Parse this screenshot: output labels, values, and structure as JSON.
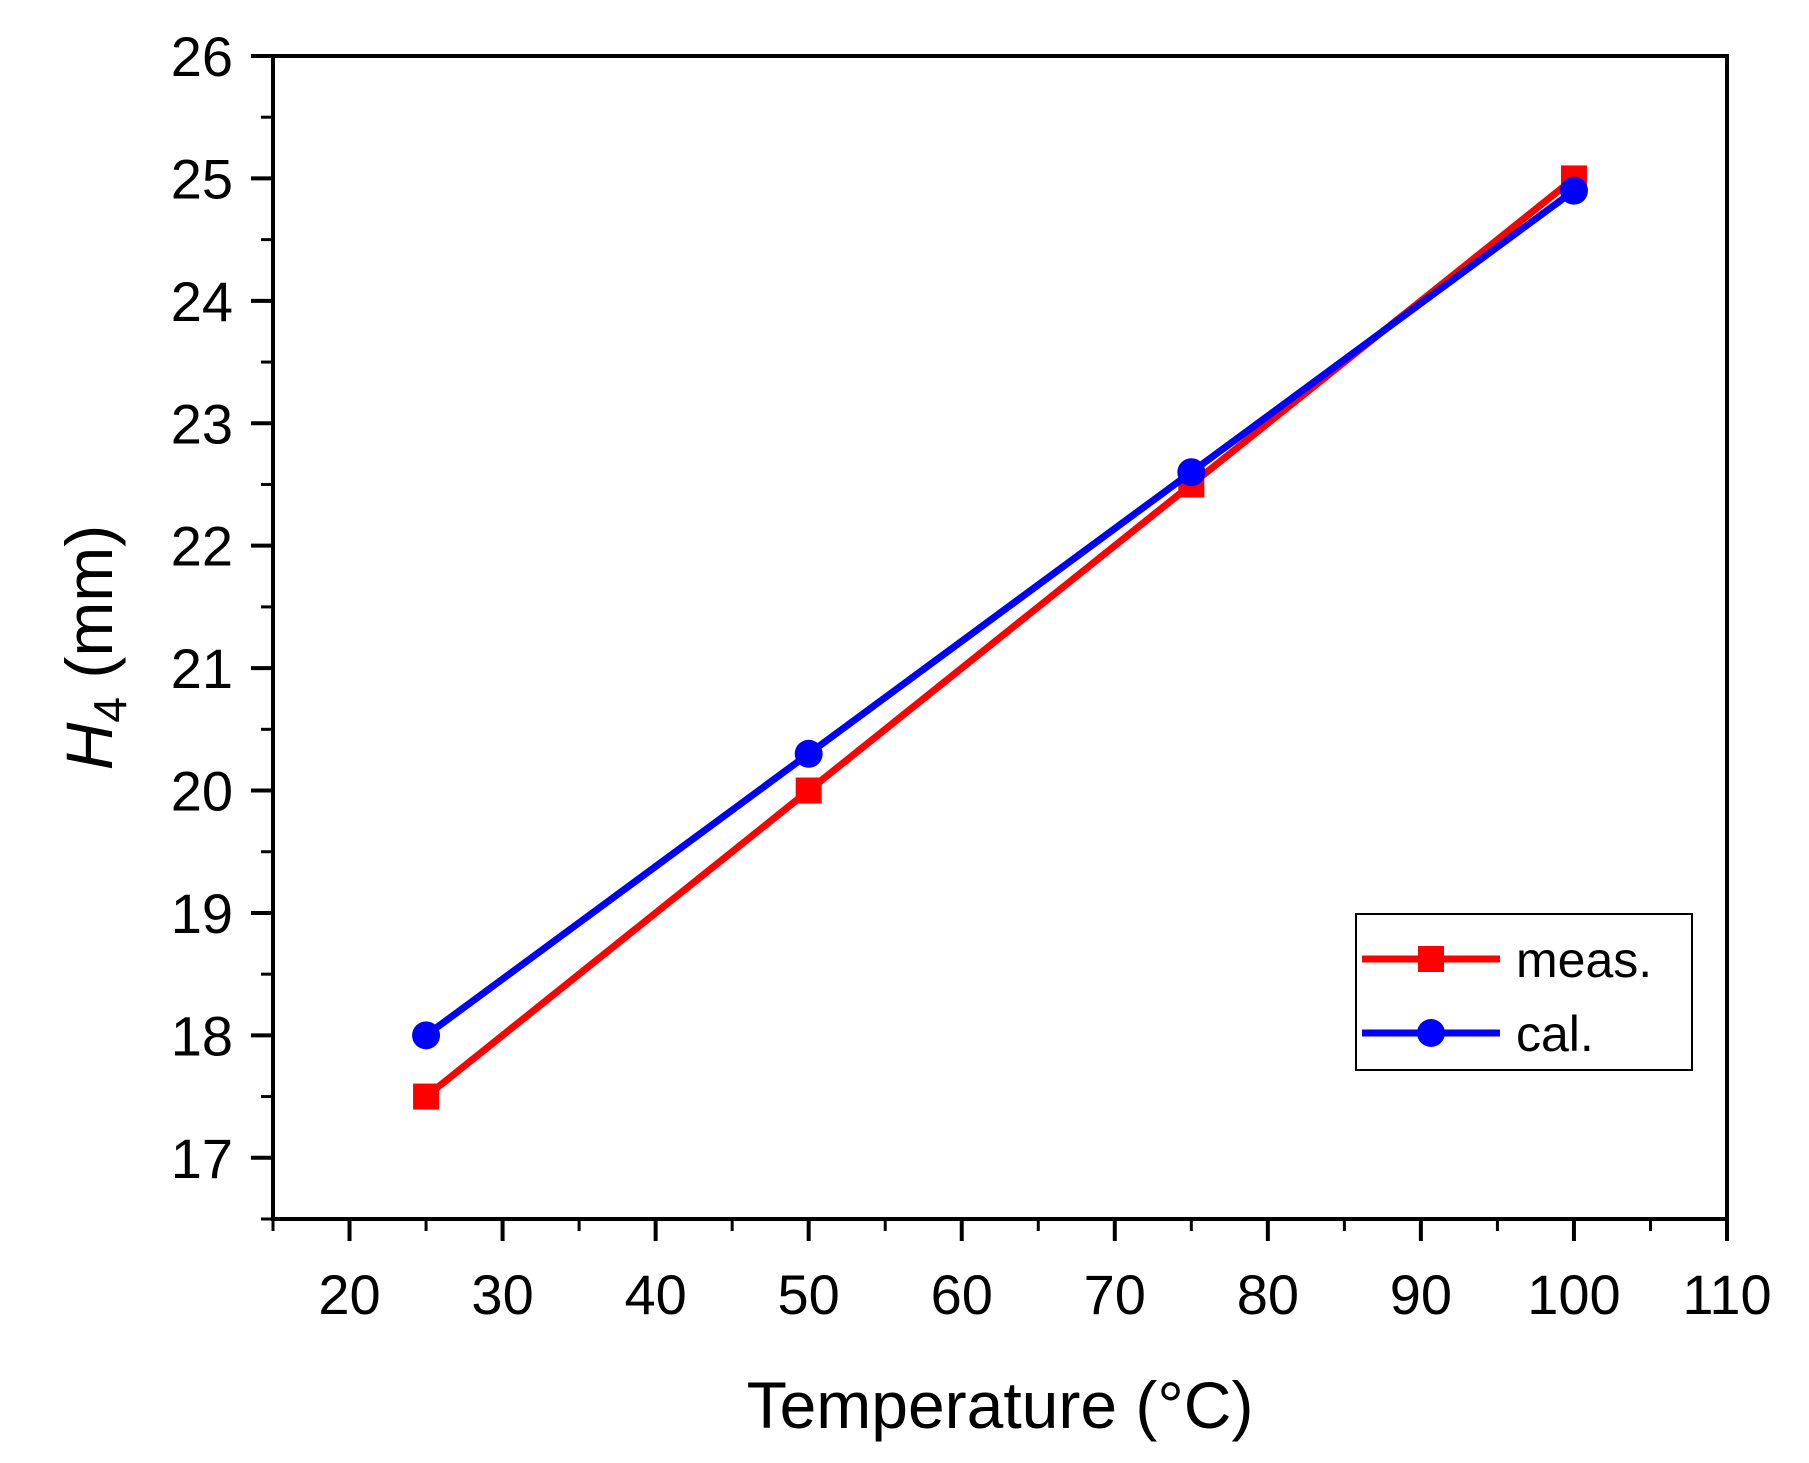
{
  "chart_data": {
    "type": "line",
    "title": "",
    "xlabel": "Temperature (°C)",
    "ylabel_var": "H",
    "ylabel_sub": "4",
    "ylabel_unit": "(mm)",
    "xlim": [
      15,
      110
    ],
    "ylim": [
      16.5,
      26
    ],
    "xticks": [
      20,
      30,
      40,
      50,
      60,
      70,
      80,
      90,
      100,
      110
    ],
    "yticks": [
      17,
      18,
      19,
      20,
      21,
      22,
      23,
      24,
      25,
      26
    ],
    "grid": false,
    "legend_position": "bottom-right",
    "series": [
      {
        "name": "meas.",
        "color": "#ff0000",
        "marker": "square",
        "x": [
          25,
          50,
          75,
          100
        ],
        "values": [
          17.5,
          20.0,
          22.5,
          25.0
        ]
      },
      {
        "name": "cal.",
        "color": "#0000ff",
        "marker": "circle",
        "x": [
          25,
          50,
          75,
          100
        ],
        "values": [
          18.0,
          20.3,
          22.6,
          24.9
        ]
      }
    ]
  }
}
